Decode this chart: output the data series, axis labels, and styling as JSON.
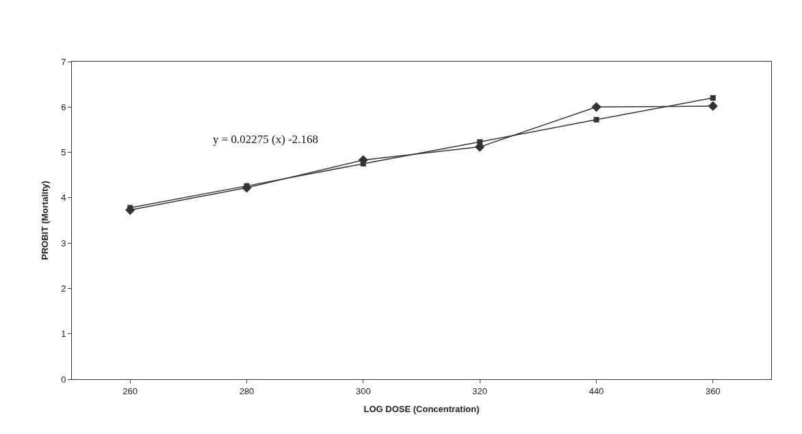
{
  "chart_data": {
    "type": "line",
    "xlabel": "LOG DOSE (Concentration)",
    "ylabel": "PROBIT (Mortality)",
    "categories": [
      "260",
      "280",
      "300",
      "320",
      "440",
      "360"
    ],
    "series": [
      {
        "color": "#333333",
        "marker": "diamond",
        "values": [
          3.73,
          4.22,
          4.83,
          5.12,
          6.0,
          6.02
        ]
      },
      {
        "color": "#333333",
        "marker": "square",
        "values": [
          3.78,
          4.26,
          4.75,
          5.23,
          5.72,
          6.2
        ]
      }
    ],
    "ylim": [
      0,
      7
    ],
    "yticks": [
      0,
      1,
      2,
      3,
      4,
      5,
      6,
      7
    ],
    "annotations": [
      "y = 0.02275 (x) -2.168"
    ]
  }
}
